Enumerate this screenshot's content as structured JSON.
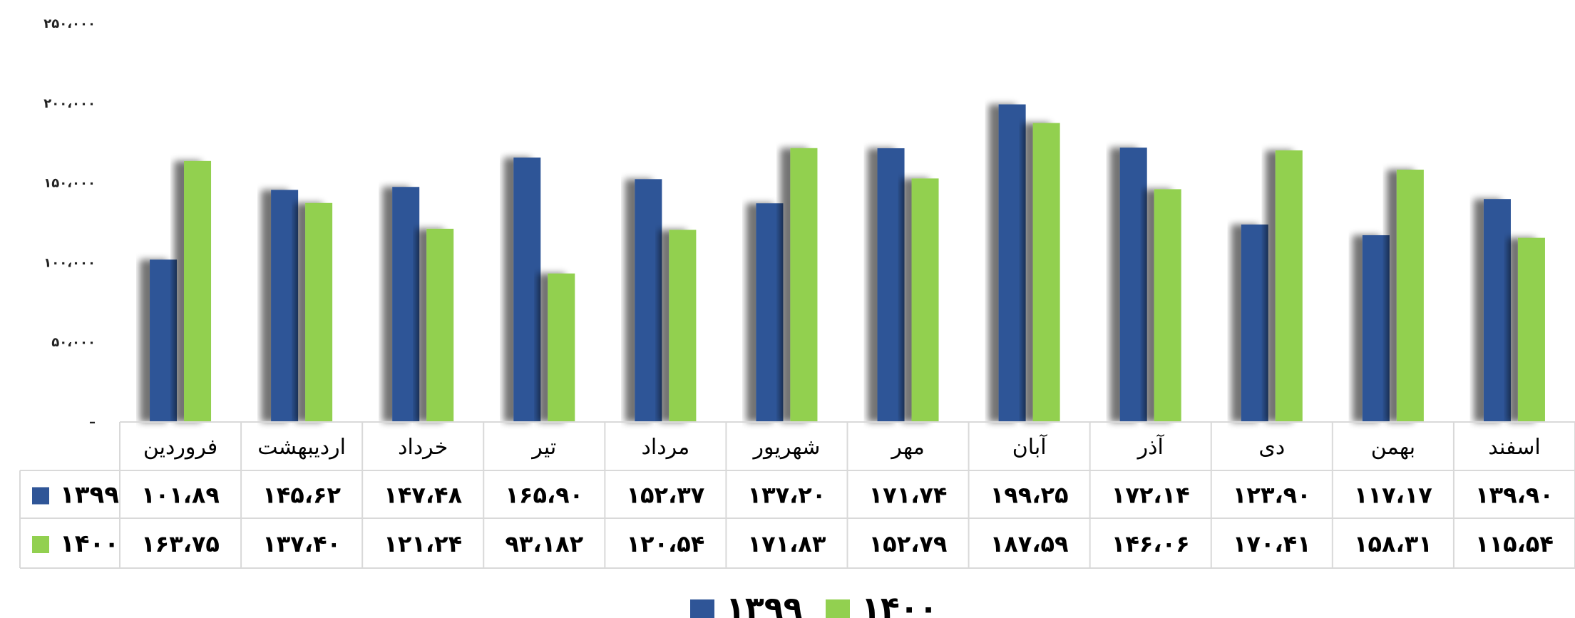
{
  "chart_data": {
    "type": "bar",
    "categories": [
      "فروردین",
      "اردیبهشت",
      "خرداد",
      "تیر",
      "مرداد",
      "شهریور",
      "مهر",
      "آبان",
      "آذر",
      "دی",
      "بهمن",
      "اسفند"
    ],
    "series": [
      {
        "name": "۱۳۹۹",
        "color": "#2F5597",
        "values": [
          101890,
          145620,
          147480,
          165900,
          152370,
          137200,
          171740,
          199250,
          172140,
          123900,
          117170,
          139900
        ],
        "labels": [
          "۱۰۱،۸۹",
          "۱۴۵،۶۲",
          "۱۴۷،۴۸",
          "۱۶۵،۹۰",
          "۱۵۲،۳۷",
          "۱۳۷،۲۰",
          "۱۷۱،۷۴",
          "۱۹۹،۲۵",
          "۱۷۲،۱۴",
          "۱۲۳،۹۰",
          "۱۱۷،۱۷",
          "۱۳۹،۹۰"
        ]
      },
      {
        "name": "۱۴۰۰",
        "color": "#92D050",
        "values": [
          163750,
          137400,
          121240,
          93182,
          120540,
          171830,
          152790,
          187590,
          146060,
          170410,
          158310,
          115540
        ],
        "labels": [
          "۱۶۳،۷۵",
          "۱۳۷،۴۰",
          "۱۲۱،۲۴",
          "۹۳،۱۸۲",
          "۱۲۰،۵۴",
          "۱۷۱،۸۳",
          "۱۵۲،۷۹",
          "۱۸۷،۵۹",
          "۱۴۶،۰۶",
          "۱۷۰،۴۱",
          "۱۵۸،۳۱",
          "۱۱۵،۵۴"
        ]
      }
    ],
    "ylim": [
      0,
      250000
    ],
    "yticks": [
      0,
      50000,
      100000,
      150000,
      200000,
      250000
    ],
    "ytick_labels": [
      "–",
      "۵۰،۰۰۰",
      "۱۰۰،۰۰۰",
      "۱۵۰،۰۰۰",
      "۲۰۰،۰۰۰",
      "۲۵۰،۰۰۰"
    ],
    "data_table": true,
    "legend_position": "bottom-center",
    "grid": false
  }
}
